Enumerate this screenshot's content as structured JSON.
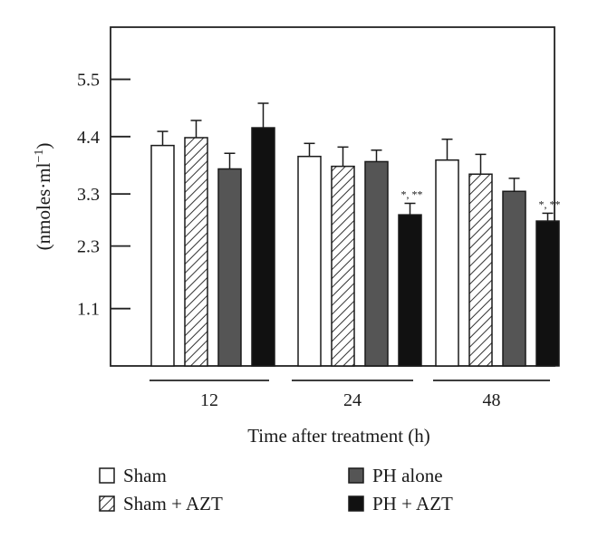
{
  "chart_data": {
    "type": "bar",
    "xlabel": "Time after treatment (h)",
    "ylabel_main": "(nmoles·ml",
    "ylabel_sup": "−1",
    "ylabel_close": ")",
    "categories": [
      "12",
      "24",
      "48"
    ],
    "yticks": [
      "1.1",
      "2.3",
      "3.3",
      "4.4",
      "5.5"
    ],
    "ylim": [
      0,
      6.5
    ],
    "series": [
      {
        "name": "Sham",
        "values": [
          4.23,
          4.02,
          3.95
        ],
        "errors": [
          0.27,
          0.25,
          0.4
        ],
        "color": "#ffffff",
        "pattern": "solid"
      },
      {
        "name": "Sham + AZT",
        "values": [
          4.38,
          3.83,
          3.68
        ],
        "errors": [
          0.33,
          0.37,
          0.38
        ],
        "color": "#ffffff",
        "pattern": "hatch"
      },
      {
        "name": "PH alone",
        "values": [
          3.78,
          3.92,
          3.35
        ],
        "errors": [
          0.3,
          0.22,
          0.25
        ],
        "color": "#555555",
        "pattern": "solid"
      },
      {
        "name": "PH + AZT",
        "values": [
          4.57,
          2.9,
          2.78
        ],
        "errors": [
          0.47,
          0.22,
          0.15
        ],
        "color": "#111111",
        "pattern": "solid"
      }
    ],
    "annotations": [
      {
        "category": "24",
        "series": "PH + AZT",
        "text": "*, **"
      },
      {
        "category": "48",
        "series": "PH + AZT",
        "text": "*, **"
      }
    ],
    "legend_position": "bottom"
  }
}
